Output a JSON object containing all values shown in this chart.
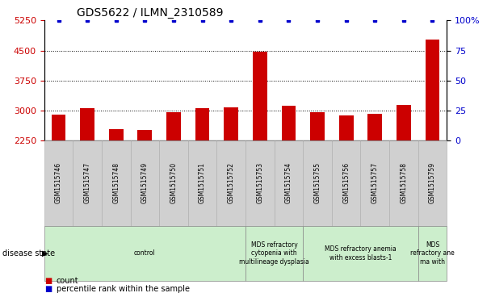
{
  "title": "GDS5622 / ILMN_2310589",
  "samples": [
    "GSM1515746",
    "GSM1515747",
    "GSM1515748",
    "GSM1515749",
    "GSM1515750",
    "GSM1515751",
    "GSM1515752",
    "GSM1515753",
    "GSM1515754",
    "GSM1515755",
    "GSM1515756",
    "GSM1515757",
    "GSM1515758",
    "GSM1515759"
  ],
  "counts": [
    2900,
    3060,
    2530,
    2510,
    2960,
    3060,
    3080,
    4480,
    3120,
    2960,
    2870,
    2920,
    3150,
    4780
  ],
  "percentile_ranks": [
    100,
    100,
    100,
    100,
    100,
    100,
    100,
    100,
    100,
    100,
    100,
    100,
    100,
    100
  ],
  "ylim_left": [
    2250,
    5250
  ],
  "ylim_right": [
    0,
    100
  ],
  "yticks_left": [
    2250,
    3000,
    3750,
    4500,
    5250
  ],
  "yticks_right": [
    0,
    25,
    50,
    75,
    100
  ],
  "bar_color": "#cc0000",
  "dot_color": "#0000cc",
  "bar_width": 0.5,
  "disease_groups": [
    {
      "label": "control",
      "start": 0,
      "end": 7,
      "color": "#cceecc"
    },
    {
      "label": "MDS refractory\ncytopenia with\nmultilineage dysplasia",
      "start": 7,
      "end": 9,
      "color": "#cceecc"
    },
    {
      "label": "MDS refractory anemia\nwith excess blasts-1",
      "start": 9,
      "end": 13,
      "color": "#cceecc"
    },
    {
      "label": "MDS\nrefractory ane\nma with",
      "start": 13,
      "end": 14,
      "color": "#cceecc"
    }
  ],
  "legend_count_label": "count",
  "legend_percentile_label": "percentile rank within the sample",
  "disease_state_label": "disease state",
  "background_color": "#ffffff",
  "tick_label_color_left": "#cc0000",
  "tick_label_color_right": "#0000cc",
  "grid_yticks": [
    3000,
    3750,
    4500
  ],
  "tick_box_color": "#d0d0d0",
  "tick_box_edge": "#aaaaaa"
}
